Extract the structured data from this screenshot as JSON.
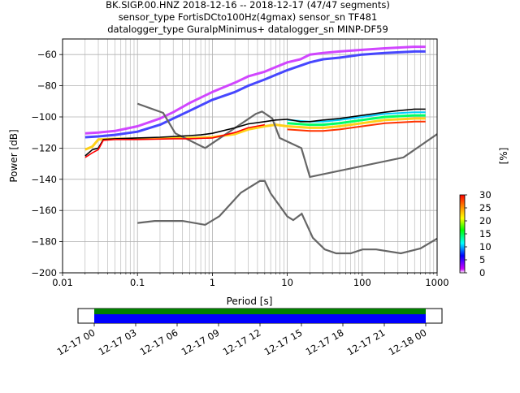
{
  "figure": {
    "title_lines": [
      "BK.SIGP.00.HNZ   2018-12-16 -- 2018-12-17  (47/47 segments)",
      "sensor_type FortisDCto100Hz(4gmax) sensor_sn TF481",
      "datalogger_type GuralpMinimus+ datalogger_sn MINP-DF59"
    ]
  },
  "chart_data": [
    {
      "type": "heatmap",
      "title": "BK.SIGP.00.HNZ   2018-12-16 -- 2018-12-17  (47/47 segments)",
      "xlabel": "Period [s]",
      "ylabel": "Power [dB]",
      "xscale": "log",
      "xlim": [
        0.01,
        1000
      ],
      "ylim": [
        -200,
        -50
      ],
      "xticks": [
        0.01,
        0.1,
        1,
        10,
        100,
        1000
      ],
      "xtick_labels": [
        "0.01",
        "0.1",
        "1",
        "10",
        "100",
        "1000"
      ],
      "yticks": [
        -200,
        -180,
        -160,
        -140,
        -120,
        -100,
        -80,
        -60
      ],
      "ytick_labels": [
        "−200",
        "−180",
        "−160",
        "−140",
        "−120",
        "−100",
        "−80",
        "−60"
      ],
      "grid": true,
      "colorbar": {
        "label": "[%]",
        "range": [
          0,
          30
        ],
        "ticks": [
          0,
          5,
          10,
          15,
          20,
          25,
          30
        ],
        "tick_labels": [
          "0",
          "5",
          "10",
          "15",
          "20",
          "25",
          "30"
        ],
        "colors": [
          "#ffffff",
          "#cc00ff",
          "#0000ff",
          "#00ffff",
          "#00ff00",
          "#ffff00",
          "#ff8800",
          "#ff0000"
        ]
      },
      "density_bands": [
        {
          "name": "upper-band",
          "color": "#cc33ff",
          "points": [
            [
              0.02,
              -110.5
            ],
            [
              0.03,
              -110
            ],
            [
              0.05,
              -109
            ],
            [
              0.08,
              -107
            ],
            [
              0.1,
              -106
            ],
            [
              0.2,
              -101
            ],
            [
              0.3,
              -97
            ],
            [
              0.5,
              -91
            ],
            [
              1,
              -84
            ],
            [
              2,
              -78
            ],
            [
              3,
              -74
            ],
            [
              5,
              -71
            ],
            [
              7,
              -68
            ],
            [
              10,
              -65
            ],
            [
              15,
              -63
            ],
            [
              20,
              -60
            ],
            [
              30,
              -59
            ],
            [
              50,
              -58
            ],
            [
              100,
              -57
            ],
            [
              200,
              -56
            ],
            [
              500,
              -55
            ],
            [
              700,
              -55
            ]
          ]
        },
        {
          "name": "middle-band",
          "color": "#3333ff",
          "points": [
            [
              0.02,
              -113
            ],
            [
              0.03,
              -112.5
            ],
            [
              0.05,
              -111.5
            ],
            [
              0.1,
              -109.5
            ],
            [
              0.2,
              -105
            ],
            [
              0.5,
              -96
            ],
            [
              1,
              -89
            ],
            [
              2,
              -84
            ],
            [
              3,
              -80
            ],
            [
              5,
              -76
            ],
            [
              7,
              -73
            ],
            [
              10,
              -70
            ],
            [
              20,
              -65
            ],
            [
              30,
              -63
            ],
            [
              50,
              -62
            ],
            [
              100,
              -60
            ],
            [
              200,
              -59
            ],
            [
              500,
              -58
            ],
            [
              700,
              -58
            ]
          ]
        },
        {
          "name": "lower-band",
          "color": "#ffcc00",
          "points": [
            [
              0.02,
              -121
            ],
            [
              0.025,
              -119
            ],
            [
              0.03,
              -114.5
            ],
            [
              0.05,
              -114
            ],
            [
              0.1,
              -114
            ],
            [
              0.3,
              -113.5
            ],
            [
              0.5,
              -113.5
            ],
            [
              1,
              -113
            ],
            [
              2,
              -111
            ],
            [
              3,
              -108
            ],
            [
              5,
              -106
            ],
            [
              7,
              -105
            ],
            [
              10,
              -106
            ],
            [
              20,
              -107
            ],
            [
              30,
              -107
            ],
            [
              50,
              -106
            ],
            [
              100,
              -104
            ],
            [
              200,
              -102
            ],
            [
              500,
              -101
            ],
            [
              700,
              -101
            ]
          ]
        }
      ],
      "series": [
        {
          "color": "#000000",
          "points": [
            [
              0.02,
              -125
            ],
            [
              0.025,
              -121
            ],
            [
              0.03,
              -120
            ],
            [
              0.035,
              -114.5
            ],
            [
              0.05,
              -114
            ],
            [
              0.1,
              -113.5
            ],
            [
              0.2,
              -113
            ],
            [
              0.5,
              -112
            ],
            [
              0.7,
              -111.5
            ],
            [
              1,
              -110.5
            ],
            [
              2,
              -107
            ],
            [
              3,
              -104.5
            ],
            [
              5,
              -103
            ],
            [
              7,
              -102
            ],
            [
              10,
              -101.5
            ],
            [
              15,
              -103
            ],
            [
              20,
              -103
            ],
            [
              30,
              -102
            ],
            [
              50,
              -101
            ],
            [
              100,
              -99
            ],
            [
              200,
              -97
            ],
            [
              300,
              -96
            ],
            [
              500,
              -95
            ],
            [
              700,
              -95
            ]
          ]
        },
        {
          "color": "#ff0000",
          "points": [
            [
              0.02,
              -126
            ],
            [
              0.025,
              -123
            ],
            [
              0.03,
              -121
            ],
            [
              0.035,
              -115
            ],
            [
              0.05,
              -114.5
            ],
            [
              0.1,
              -114.5
            ],
            [
              0.3,
              -114
            ],
            [
              0.5,
              -114
            ],
            [
              1,
              -113.5
            ],
            [
              2,
              -110
            ],
            [
              3,
              -107
            ],
            [
              5,
              -105
            ]
          ]
        }
      ],
      "noise_models": [
        {
          "name": "NHNM",
          "color": "#666666",
          "points": [
            [
              0.1,
              -91.5
            ],
            [
              0.22,
              -97.4
            ],
            [
              0.32,
              -110.5
            ],
            [
              0.8,
              -120
            ],
            [
              3.8,
              -98
            ],
            [
              4.6,
              -96.5
            ],
            [
              6.3,
              -101
            ],
            [
              7.9,
              -113.5
            ],
            [
              15.4,
              -120
            ],
            [
              20,
              -138.5
            ],
            [
              354.8,
              -126
            ],
            [
              1000,
              -111
            ]
          ]
        },
        {
          "name": "NLNM",
          "color": "#666666",
          "points": [
            [
              0.1,
              -168
            ],
            [
              0.17,
              -166.7
            ],
            [
              0.4,
              -166.7
            ],
            [
              0.8,
              -169.2
            ],
            [
              1.24,
              -163.7
            ],
            [
              2.4,
              -148.6
            ],
            [
              4.3,
              -141.1
            ],
            [
              5,
              -141.1
            ],
            [
              6,
              -149
            ],
            [
              10,
              -163.8
            ],
            [
              12,
              -166.2
            ],
            [
              15.6,
              -162.1
            ],
            [
              21.9,
              -177.5
            ],
            [
              31.6,
              -185
            ],
            [
              45,
              -187.5
            ],
            [
              70,
              -187.5
            ],
            [
              101,
              -185
            ],
            [
              154,
              -185
            ],
            [
              328,
              -187.5
            ],
            [
              600,
              -184.4
            ],
            [
              1000,
              -178
            ]
          ]
        }
      ]
    },
    {
      "type": "timeline",
      "xlabel": "",
      "segments": [
        {
          "name": "data-coverage-top",
          "color": "#008000"
        },
        {
          "name": "data-coverage-bottom",
          "color": "#0000ff"
        }
      ],
      "tick_labels": [
        "12-17 00",
        "12-17 03",
        "12-17 06",
        "12-17 09",
        "12-17 12",
        "12-17 15",
        "12-17 18",
        "12-17 21",
        "12-18 00"
      ]
    }
  ]
}
